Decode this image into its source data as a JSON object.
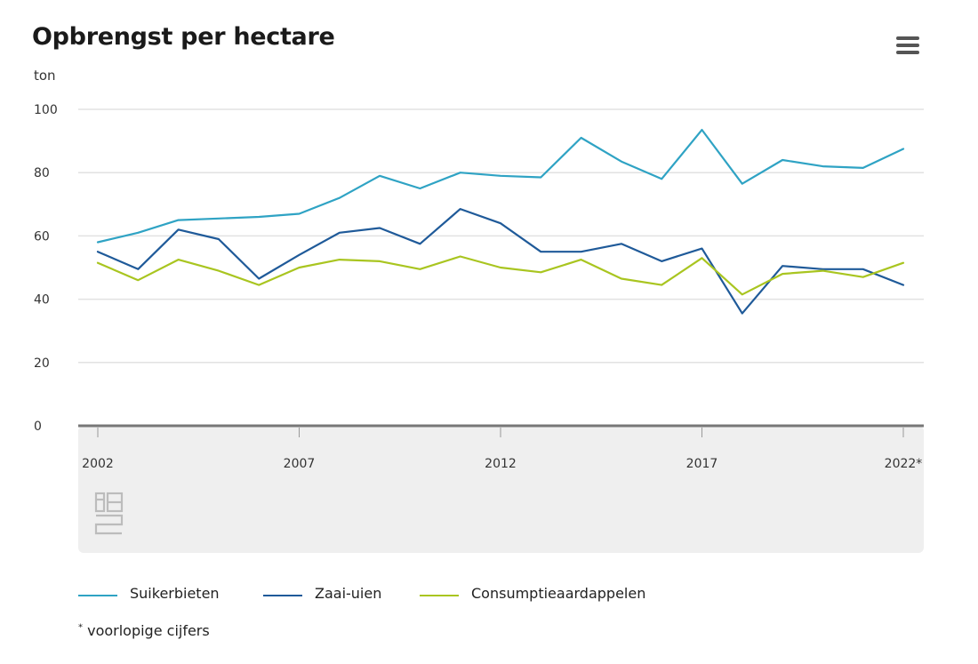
{
  "header": {
    "title": "Opbrengst per hectare",
    "unit": "ton",
    "menu_icon": "hamburger-menu-icon"
  },
  "footnote": {
    "marker": "*",
    "text": "voorlopige cijfers"
  },
  "logo": {
    "name": "cbs-logo",
    "text": "cbs"
  },
  "chart_data": {
    "type": "line",
    "title": "Opbrengst per hectare",
    "ylabel": "ton",
    "xlabel": "",
    "ylim": [
      0,
      100
    ],
    "yticks": [
      0,
      20,
      40,
      60,
      80,
      100
    ],
    "x": [
      2002,
      2003,
      2004,
      2005,
      2006,
      2007,
      2008,
      2009,
      2010,
      2011,
      2012,
      2013,
      2014,
      2015,
      2016,
      2017,
      2018,
      2019,
      2020,
      2021,
      2022
    ],
    "xticks": [
      2002,
      2007,
      2012,
      2017,
      2022
    ],
    "xtick_labels": [
      "2002",
      "2007",
      "2012",
      "2017",
      "2022*"
    ],
    "grid": true,
    "legend_position": "bottom",
    "series": [
      {
        "name": "Suikerbieten",
        "color": "#2fa3c4",
        "values": [
          58,
          61,
          65,
          65.5,
          66,
          67,
          72,
          79,
          75,
          80,
          79,
          78.5,
          91,
          83.5,
          78,
          93.5,
          76.5,
          84,
          82,
          81.5,
          87.5
        ]
      },
      {
        "name": "Zaai-uien",
        "color": "#1f5a99",
        "values": [
          55,
          49.5,
          62,
          59,
          46.5,
          54,
          61,
          62.5,
          57.5,
          68.5,
          64,
          55,
          55,
          57.5,
          52,
          56,
          35.5,
          50.5,
          49.5,
          49.5,
          44.5
        ]
      },
      {
        "name": "Consumptieaardappelen",
        "color": "#a9c520",
        "values": [
          51.5,
          46,
          52.5,
          49,
          44.5,
          50,
          52.5,
          52,
          49.5,
          53.5,
          50,
          48.5,
          52.5,
          46.5,
          44.5,
          53,
          41.5,
          48,
          49,
          47,
          51.5
        ]
      }
    ]
  }
}
